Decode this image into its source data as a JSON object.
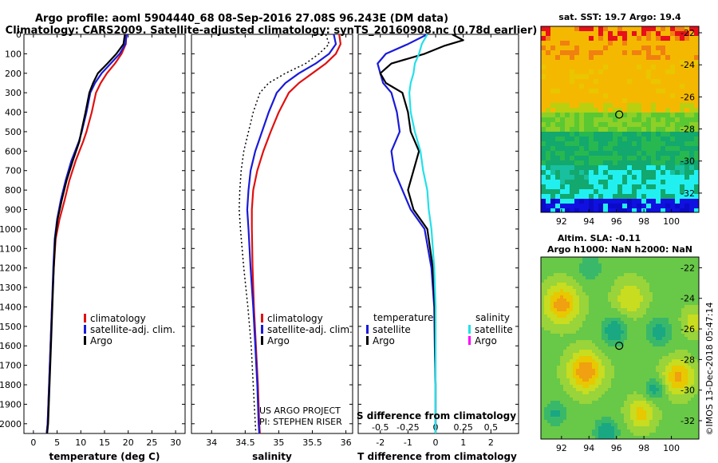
{
  "title": {
    "line1": "Argo profile: aoml 5904440_68 08-Sep-2016 27.08S 96.243E (DM data)",
    "line2": "Climatology: CARS2009. Satellite-adjusted climatology: synTS_20160908.nc (0.78d earlier)"
  },
  "colors": {
    "climatology": "#e01010",
    "satellite": "#1a1ad8",
    "argo": "#000000",
    "sat_salinity": "#22e0e8",
    "argo_salinity": "#ff00ff"
  },
  "credits": {
    "line1": "US ARGO PROJECT",
    "line2": "PI: STEPHEN RISER",
    "imos": "©IMOS 13-Dec-2018 05:47:14"
  },
  "chart_data": [
    {
      "type": "line",
      "id": "temperature",
      "xlabel": "temperature (deg C)",
      "ylabel": "",
      "xlim": [
        -2,
        32
      ],
      "ylim": [
        2050,
        0
      ],
      "xticks": [
        0,
        5,
        10,
        15,
        20,
        25,
        30
      ],
      "yticks": [
        0,
        100,
        200,
        300,
        400,
        500,
        600,
        700,
        800,
        900,
        1000,
        1100,
        1200,
        1300,
        1400,
        1500,
        1600,
        1700,
        1800,
        1900,
        2000
      ],
      "legend": [
        "climatology",
        "satellite-adj. clim.",
        "Argo"
      ],
      "series": [
        {
          "name": "climatology",
          "style": "solid",
          "color_key": "climatology",
          "points": [
            [
              19.6,
              0
            ],
            [
              19.5,
              50
            ],
            [
              18.6,
              100
            ],
            [
              17.2,
              150
            ],
            [
              15.5,
              200
            ],
            [
              14.2,
              250
            ],
            [
              13.2,
              300
            ],
            [
              12.3,
              400
            ],
            [
              11.2,
              500
            ],
            [
              10.5,
              550
            ],
            [
              8.9,
              650
            ],
            [
              7.6,
              750
            ],
            [
              6.6,
              850
            ],
            [
              5.5,
              950
            ],
            [
              4.7,
              1050
            ],
            [
              4.3,
              1200
            ],
            [
              3.9,
              1400
            ],
            [
              3.6,
              1600
            ],
            [
              3.3,
              1800
            ],
            [
              3.0,
              2000
            ],
            [
              2.8,
              2050
            ]
          ]
        },
        {
          "name": "satellite-adj. clim.",
          "style": "solid",
          "color_key": "satellite",
          "points": [
            [
              19.7,
              0
            ],
            [
              19.4,
              50
            ],
            [
              18.2,
              100
            ],
            [
              16.3,
              150
            ],
            [
              14.4,
              200
            ],
            [
              13.0,
              250
            ],
            [
              12.0,
              300
            ],
            [
              11.2,
              400
            ],
            [
              10.2,
              500
            ],
            [
              9.6,
              550
            ],
            [
              8.0,
              650
            ],
            [
              6.8,
              750
            ],
            [
              5.8,
              850
            ],
            [
              5.0,
              950
            ],
            [
              4.5,
              1050
            ],
            [
              4.2,
              1200
            ],
            [
              3.9,
              1400
            ],
            [
              3.6,
              1600
            ],
            [
              3.3,
              1800
            ],
            [
              3.0,
              2000
            ],
            [
              2.8,
              2050
            ]
          ]
        },
        {
          "name": "Argo",
          "style": "solid",
          "color_key": "argo",
          "points": [
            [
              19.3,
              0
            ],
            [
              19.0,
              50
            ],
            [
              17.5,
              100
            ],
            [
              15.6,
              150
            ],
            [
              13.6,
              200
            ],
            [
              12.6,
              250
            ],
            [
              11.8,
              300
            ],
            [
              11.0,
              400
            ],
            [
              10.1,
              500
            ],
            [
              9.7,
              550
            ],
            [
              8.3,
              650
            ],
            [
              7.0,
              750
            ],
            [
              6.0,
              850
            ],
            [
              5.1,
              950
            ],
            [
              4.6,
              1050
            ],
            [
              4.3,
              1200
            ],
            [
              4.0,
              1400
            ],
            [
              3.7,
              1600
            ],
            [
              3.4,
              1800
            ],
            [
              3.1,
              2000
            ],
            [
              2.9,
              2050
            ]
          ]
        }
      ]
    },
    {
      "type": "line",
      "id": "salinity",
      "xlabel": "salinity",
      "xlim": [
        33.7,
        36.1
      ],
      "ylim": [
        2050,
        0
      ],
      "xticks": [
        34,
        34.5,
        35,
        35.5,
        36
      ],
      "xticklabels": [
        "34",
        "34.5",
        "35",
        "35.5",
        "36"
      ],
      "legend": [
        "climatology",
        "satellite-adj. clim.",
        "Argo"
      ],
      "series": [
        {
          "name": "climatology",
          "style": "solid",
          "color_key": "climatology",
          "points": [
            [
              35.9,
              0
            ],
            [
              35.92,
              50
            ],
            [
              35.85,
              100
            ],
            [
              35.7,
              150
            ],
            [
              35.5,
              200
            ],
            [
              35.3,
              250
            ],
            [
              35.15,
              300
            ],
            [
              35.0,
              400
            ],
            [
              34.88,
              500
            ],
            [
              34.77,
              600
            ],
            [
              34.68,
              700
            ],
            [
              34.62,
              800
            ],
            [
              34.6,
              900
            ],
            [
              34.6,
              1000
            ],
            [
              34.61,
              1200
            ],
            [
              34.63,
              1400
            ],
            [
              34.66,
              1600
            ],
            [
              34.69,
              1800
            ],
            [
              34.71,
              2000
            ],
            [
              34.72,
              2050
            ]
          ]
        },
        {
          "name": "satellite-adj. clim.",
          "style": "solid",
          "color_key": "satellite",
          "points": [
            [
              35.82,
              0
            ],
            [
              35.85,
              50
            ],
            [
              35.75,
              100
            ],
            [
              35.55,
              150
            ],
            [
              35.3,
              200
            ],
            [
              35.1,
              250
            ],
            [
              34.97,
              300
            ],
            [
              34.85,
              400
            ],
            [
              34.75,
              500
            ],
            [
              34.65,
              600
            ],
            [
              34.58,
              700
            ],
            [
              34.55,
              800
            ],
            [
              34.53,
              900
            ],
            [
              34.55,
              1000
            ],
            [
              34.58,
              1200
            ],
            [
              34.62,
              1400
            ],
            [
              34.65,
              1600
            ],
            [
              34.68,
              1800
            ],
            [
              34.7,
              2000
            ],
            [
              34.71,
              2050
            ]
          ]
        },
        {
          "name": "Argo",
          "style": "dotted",
          "color_key": "argo",
          "points": [
            [
              35.7,
              0
            ],
            [
              35.75,
              50
            ],
            [
              35.6,
              100
            ],
            [
              35.4,
              150
            ],
            [
              35.1,
              200
            ],
            [
              34.85,
              250
            ],
            [
              34.72,
              300
            ],
            [
              34.62,
              400
            ],
            [
              34.55,
              500
            ],
            [
              34.48,
              600
            ],
            [
              34.44,
              700
            ],
            [
              34.42,
              800
            ],
            [
              34.41,
              900
            ],
            [
              34.43,
              1000
            ],
            [
              34.48,
              1200
            ],
            [
              34.54,
              1400
            ],
            [
              34.59,
              1600
            ],
            [
              34.62,
              1800
            ],
            [
              34.65,
              2000
            ],
            [
              34.66,
              2050
            ]
          ]
        }
      ]
    },
    {
      "type": "line",
      "id": "difference",
      "xlabel": "T difference from climatology",
      "top_xlabel": "S difference from climatology",
      "xlim": [
        -2.8,
        3.0
      ],
      "ylim": [
        2050,
        0
      ],
      "xticks": [
        -2,
        -1,
        0,
        1,
        2
      ],
      "top_xticks": [
        -0.5,
        -0.25,
        0,
        0.25,
        0.5
      ],
      "top_xticklabels": [
        "-0.5",
        "-0.25",
        "0",
        "0.25",
        "0.5"
      ],
      "legend_temperature": {
        "header": "temperature",
        "items": [
          "satellite",
          "Argo"
        ]
      },
      "legend_salinity": {
        "header": "salinity",
        "items": [
          "satellite",
          "Argo"
        ]
      },
      "series": [
        {
          "name": "T satellite",
          "style": "solid",
          "color_key": "satellite",
          "points": [
            [
              -0.3,
              0
            ],
            [
              -1.0,
              50
            ],
            [
              -1.8,
              100
            ],
            [
              -2.1,
              150
            ],
            [
              -2.0,
              200
            ],
            [
              -1.9,
              250
            ],
            [
              -1.6,
              300
            ],
            [
              -1.4,
              400
            ],
            [
              -1.3,
              500
            ],
            [
              -1.6,
              600
            ],
            [
              -1.5,
              700
            ],
            [
              -1.2,
              800
            ],
            [
              -0.9,
              900
            ],
            [
              -0.4,
              1000
            ],
            [
              -0.15,
              1200
            ],
            [
              -0.05,
              1400
            ],
            [
              -0.03,
              1600
            ],
            [
              0.0,
              1800
            ],
            [
              0.0,
              2000
            ],
            [
              0.0,
              2050
            ]
          ]
        },
        {
          "name": "T Argo",
          "style": "solid",
          "color_key": "argo",
          "points": [
            [
              0.6,
              0
            ],
            [
              1.0,
              30
            ],
            [
              0.3,
              60
            ],
            [
              -0.4,
              100
            ],
            [
              -1.6,
              150
            ],
            [
              -2.0,
              200
            ],
            [
              -1.8,
              250
            ],
            [
              -1.2,
              300
            ],
            [
              -1.0,
              400
            ],
            [
              -0.9,
              500
            ],
            [
              -0.6,
              600
            ],
            [
              -0.8,
              700
            ],
            [
              -1.0,
              800
            ],
            [
              -0.8,
              900
            ],
            [
              -0.3,
              1000
            ],
            [
              -0.1,
              1200
            ],
            [
              -0.03,
              1400
            ],
            [
              -0.02,
              1600
            ],
            [
              0.0,
              1800
            ],
            [
              0.0,
              2000
            ],
            [
              0.0,
              2050
            ]
          ]
        },
        {
          "name": "S satellite",
          "style": "solid",
          "color_key": "sat_salinity",
          "points": [
            [
              -0.3,
              0
            ],
            [
              -0.5,
              50
            ],
            [
              -0.6,
              100
            ],
            [
              -0.75,
              150
            ],
            [
              -0.8,
              200
            ],
            [
              -0.9,
              250
            ],
            [
              -0.95,
              300
            ],
            [
              -0.9,
              400
            ],
            [
              -0.75,
              500
            ],
            [
              -0.55,
              600
            ],
            [
              -0.45,
              700
            ],
            [
              -0.3,
              800
            ],
            [
              -0.25,
              900
            ],
            [
              -0.15,
              1000
            ],
            [
              -0.05,
              1200
            ],
            [
              0.0,
              1400
            ],
            [
              0.0,
              1600
            ],
            [
              0.0,
              1800
            ],
            [
              0.0,
              2000
            ],
            [
              0.0,
              2050
            ]
          ]
        }
      ]
    },
    {
      "type": "heatmap",
      "id": "sst_map",
      "title": "sat. SST: 19.7 Argo: 19.4",
      "xlim": [
        90.5,
        102
      ],
      "ylim": [
        -33.2,
        -21.6
      ],
      "xticks": [
        92,
        94,
        96,
        98,
        100
      ],
      "yticks": [
        -22,
        -24,
        -26,
        -28,
        -30,
        -32
      ],
      "marker": [
        96.2,
        -27.1
      ]
    },
    {
      "type": "heatmap",
      "id": "sla_map",
      "title": "Altim. SLA: -0.11",
      "subtitle": "Argo h1000: NaN h2000: NaN",
      "xlim": [
        90.5,
        102
      ],
      "ylim": [
        -33.2,
        -21.3
      ],
      "xticks": [
        92,
        94,
        96,
        98,
        100
      ],
      "yticks": [
        -22,
        -24,
        -26,
        -28,
        -30,
        -32
      ],
      "marker": [
        96.2,
        -27.1
      ]
    }
  ]
}
